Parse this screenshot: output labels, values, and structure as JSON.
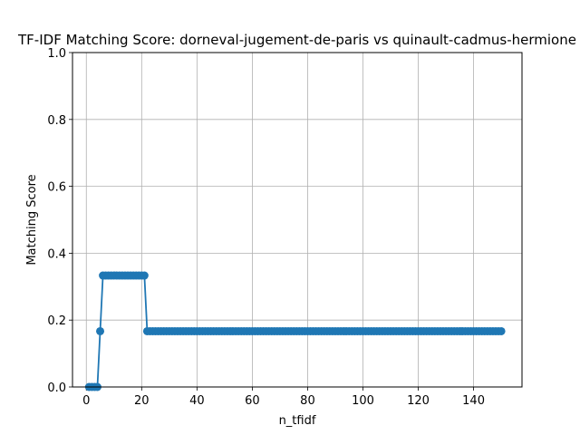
{
  "chart_data": {
    "type": "line",
    "title": "TF-IDF Matching Score: dorneval-jugement-de-paris vs quinault-cadmus-hermione",
    "xlabel": "n_tfidf",
    "ylabel": "Matching Score",
    "xlim": [
      -5,
      157.5
    ],
    "ylim": [
      0,
      1
    ],
    "xticks": [
      0,
      20,
      40,
      60,
      80,
      100,
      120,
      140
    ],
    "yticks": [
      0.0,
      0.2,
      0.4,
      0.6,
      0.8,
      1.0
    ],
    "ytick_labels": [
      "0.0",
      "0.2",
      "0.4",
      "0.6",
      "0.8",
      "1.0"
    ],
    "grid": true,
    "marker": "circle",
    "color": "#1f77b4",
    "series": [
      {
        "segments": [
          {
            "x_from": 1,
            "x_to": 4,
            "y": 0.0
          },
          {
            "x_from": 5,
            "x_to": 5,
            "y": 0.1667
          },
          {
            "x_from": 6,
            "x_to": 21,
            "y": 0.3333
          },
          {
            "x_from": 22,
            "x_to": 150,
            "y": 0.1667
          }
        ]
      }
    ]
  }
}
